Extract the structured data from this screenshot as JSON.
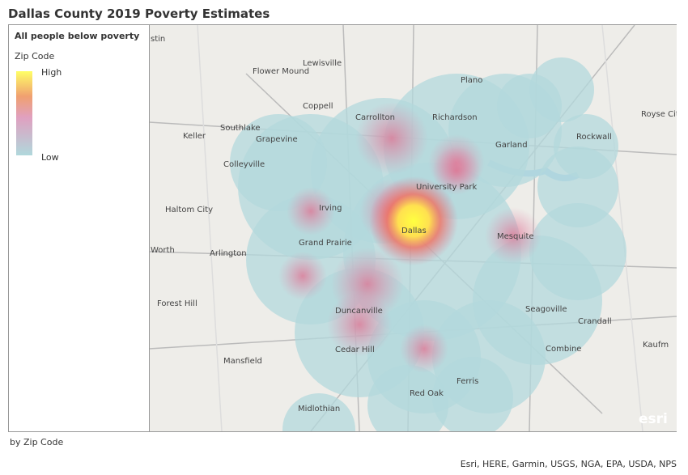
{
  "header": {
    "title": "Dallas County 2019 Poverty Estimates"
  },
  "legend": {
    "title": "All people below poverty",
    "field": "Zip Code",
    "high": "High",
    "low": "Low"
  },
  "map": {
    "places": [
      "stin",
      "Lewisville",
      "Flower Mound",
      "Plano",
      "Coppell",
      "Carrollton",
      "Richardson",
      "Royse City",
      "Southlake",
      "Keller",
      "Grapevine",
      "Garland",
      "Rockwall",
      "Colleyville",
      "University Park",
      "Haltom City",
      "Irving",
      "Dallas",
      "Grand Prairie",
      "Mesquite",
      "Worth",
      "Arlington",
      "Forest Hill",
      "Duncanville",
      "Seagoville",
      "Crandall",
      "Cedar Hill",
      "Combine",
      "Kaufm",
      "Mansfield",
      "Ferris",
      "Red Oak",
      "Midlothian"
    ],
    "logo": "esri"
  },
  "footer": {
    "caption": "by Zip Code",
    "attribution": "Esri, HERE, Garmin, USGS, NGA, EPA, USDA, NPS"
  }
}
